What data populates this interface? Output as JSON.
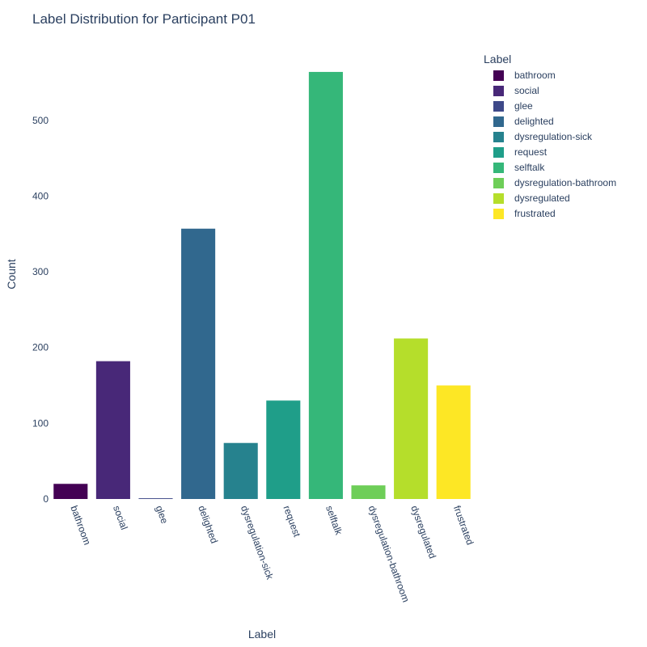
{
  "chart_data": {
    "type": "bar",
    "title": "Label Distribution for Participant P01",
    "xlabel": "Label",
    "ylabel": "Count",
    "ylim": [
      0,
      565
    ],
    "yticks": [
      0,
      100,
      200,
      300,
      400,
      500
    ],
    "categories": [
      "bathroom",
      "social",
      "glee",
      "delighted",
      "dysregulation-sick",
      "request",
      "selftalk",
      "dysregulation-bathroom",
      "dysregulated",
      "frustrated"
    ],
    "values": [
      20,
      182,
      1,
      357,
      74,
      130,
      564,
      18,
      212,
      150
    ],
    "colors": [
      "#440154",
      "#482878",
      "#3e4989",
      "#31688e",
      "#26828e",
      "#1f9e89",
      "#35b779",
      "#6ece58",
      "#b5de2b",
      "#fde725"
    ],
    "legend_title": "Label",
    "legend_position": "right",
    "grid": false
  }
}
